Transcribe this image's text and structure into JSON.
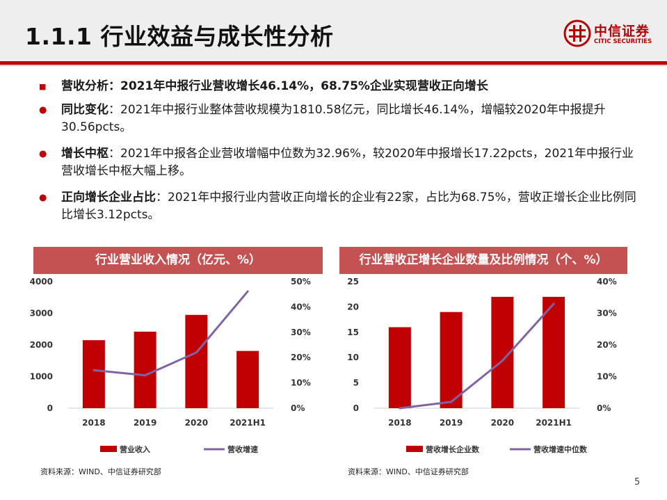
{
  "slide": {
    "title": "1.1.1 行业效益与成长性分析",
    "page_number": "5",
    "logo": {
      "cn": "中信证券",
      "en": "CITIC SECURITIES"
    }
  },
  "bullets": [
    {
      "label": "营收分析：2021年中报行业营收增长46.14%，68.75%企业实现营收正向增长",
      "text": ""
    },
    {
      "label": "同比变化",
      "text": "：2021年中报行业整体营收规模为1810.58亿元，同比增长46.14%，增幅较2020年中报提升30.56pcts。"
    },
    {
      "label": "增长中枢",
      "text": "：2021年中报各企业营收增幅中位数为32.96%，较2020年中报增长17.22pcts，2021年中报行业营收增长中枢大幅上移。"
    },
    {
      "label": "正向增长企业占比",
      "text": "：2021年中报行业内营收正向增长的企业有22家，占比为68.75%，营收正增长企业比例同比增长3.12pcts。"
    }
  ],
  "sources": {
    "left": "资料来源：WIND、中信证券研究部",
    "right": "资料来源：WIND、中信证券研究部"
  },
  "colors": {
    "bar": "#c00000",
    "line": "#8064a2",
    "panel": "#c55252"
  },
  "chart_data": [
    {
      "type": "bar",
      "title": "行业营业收入情况（亿元、%）",
      "categories": [
        "2018",
        "2019",
        "2020",
        "2021H1"
      ],
      "y_ticks": [
        "0",
        "1000",
        "2000",
        "3000",
        "4000"
      ],
      "y2_ticks": [
        "0%",
        "10%",
        "20%",
        "30%",
        "40%",
        "50%"
      ],
      "ylim": [
        0,
        4000
      ],
      "y2lim": [
        0,
        50
      ],
      "series": [
        {
          "name": "营业收入",
          "type": "bar",
          "axis": "left",
          "values": [
            2150,
            2420,
            2950,
            1810.58
          ]
        },
        {
          "name": "营收增速",
          "type": "line",
          "axis": "right",
          "values": [
            15,
            13,
            22,
            46.14
          ]
        }
      ],
      "legend_position": "bottom",
      "grid": false
    },
    {
      "type": "bar",
      "title": "行业营收正增长企业数量及比例情况（个、%）",
      "categories": [
        "2018",
        "2019",
        "2020",
        "2021H1"
      ],
      "y_ticks": [
        "0",
        "5",
        "10",
        "15",
        "20",
        "25"
      ],
      "y2_ticks": [
        "0%",
        "10%",
        "20%",
        "30%",
        "40%"
      ],
      "ylim": [
        0,
        25
      ],
      "y2lim": [
        0,
        40
      ],
      "series": [
        {
          "name": "营收增长企业数",
          "type": "bar",
          "axis": "left",
          "values": [
            16,
            19,
            22,
            22
          ]
        },
        {
          "name": "营收增速中位数",
          "type": "line",
          "axis": "right",
          "values": [
            0,
            2,
            15,
            33
          ]
        }
      ],
      "legend_position": "bottom",
      "grid": false
    }
  ]
}
